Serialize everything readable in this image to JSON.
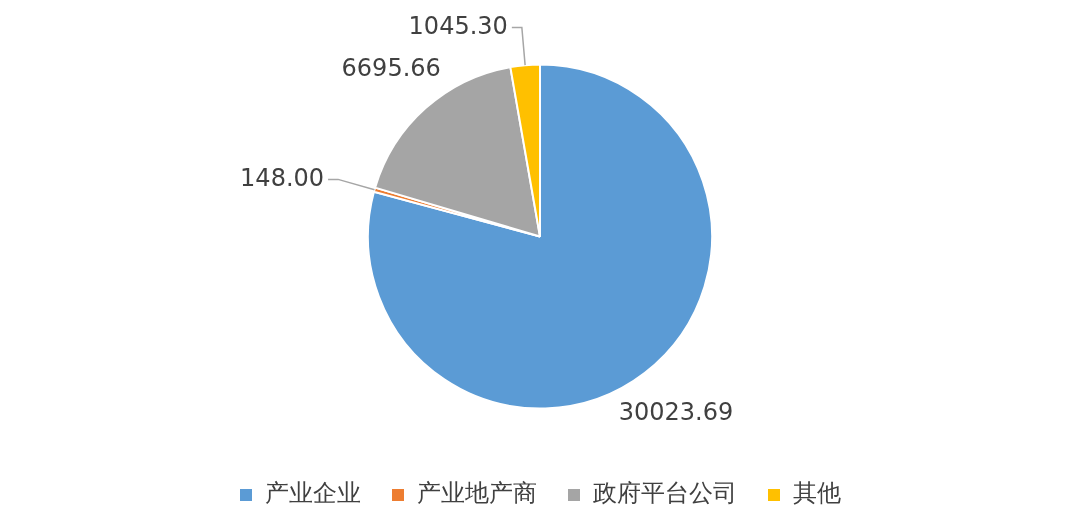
{
  "chart_data": {
    "type": "pie",
    "categories": [
      "产业企业",
      "产业地产商",
      "政府平台公司",
      "其他"
    ],
    "values": [
      30023.69,
      148.0,
      6695.66,
      1045.3
    ],
    "value_labels": [
      "30023.69",
      "148.00",
      "6695.66",
      "1045.30"
    ],
    "colors": [
      "#5b9bd5",
      "#ed7d31",
      "#a5a5a5",
      "#ffc000"
    ],
    "legend": "bottom"
  }
}
